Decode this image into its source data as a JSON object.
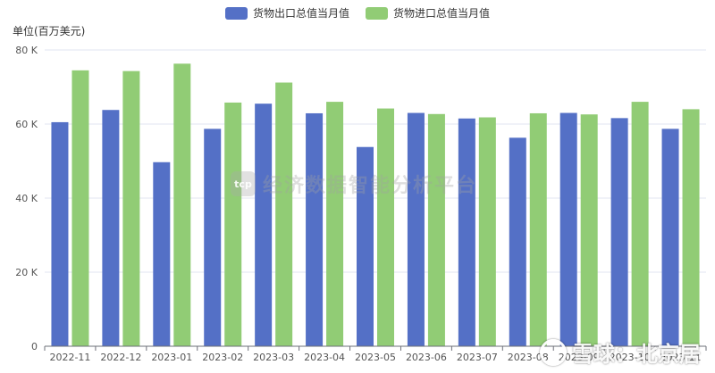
{
  "chart_data": {
    "type": "bar",
    "categories": [
      "2022-11",
      "2022-12",
      "2023-01",
      "2023-02",
      "2023-03",
      "2023-04",
      "2023-05",
      "2023-06",
      "2023-07",
      "2023-08",
      "2023-09",
      "2023-10",
      "2023-11"
    ],
    "series": [
      {
        "name": "货物出口总值当月值",
        "color": "#5470c6",
        "values": [
          60500,
          63800,
          49700,
          58700,
          65500,
          62900,
          53800,
          63000,
          61500,
          56300,
          63000,
          61600,
          58700
        ]
      },
      {
        "name": "货物进口总值当月值",
        "color": "#91cc75",
        "values": [
          74500,
          74300,
          76300,
          65800,
          71200,
          66000,
          64200,
          62700,
          61800,
          62900,
          62600,
          66000,
          64000
        ]
      }
    ],
    "ylabel": "单位(百万美元)",
    "ylim": [
      0,
      80000
    ],
    "yticks": [
      0,
      20000,
      40000,
      60000,
      80000
    ],
    "ytick_labels": [
      "0",
      "20 K",
      "40 K",
      "60 K",
      "80 K"
    ],
    "grid": true,
    "legend": "top-center"
  },
  "watermark": {
    "logo_text": "tcp",
    "text": "经济数据智能分析平台"
  },
  "brand": {
    "text": "雪球：北京居"
  }
}
